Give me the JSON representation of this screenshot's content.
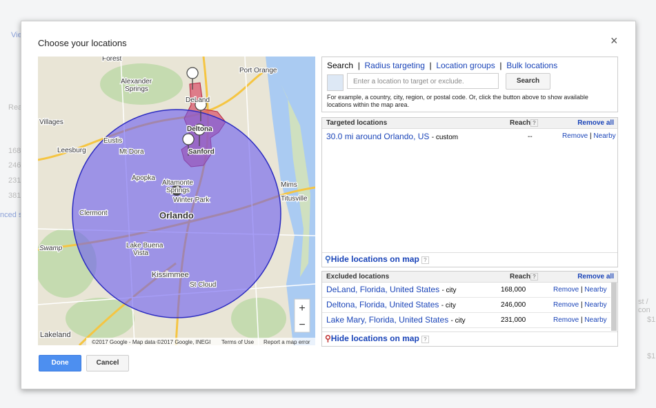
{
  "background": {
    "texts": [
      "Vie",
      "Rea",
      "168",
      "246",
      "231",
      "381",
      "nced s",
      "st / con",
      "$1",
      "$1"
    ]
  },
  "dialog": {
    "title": "Choose your locations",
    "close": "×",
    "tabs": [
      "Search",
      "Radius targeting",
      "Location groups",
      "Bulk locations"
    ],
    "search": {
      "placeholder": "Enter a location to target or exclude.",
      "button": "Search",
      "help": "For example, a country, city, region, or postal code. Or, click the button above to show available locations within the map area."
    },
    "targeted": {
      "header": "Targeted locations",
      "reach": "Reach",
      "help": "?",
      "remove_all": "Remove all",
      "rows": [
        {
          "name": "30.0 mi around Orlando, US",
          "type": "- custom",
          "reach": "--",
          "remove": "Remove",
          "nearby": "Nearby"
        }
      ],
      "hide": "Hide locations on map",
      "hide_help": "?"
    },
    "excluded": {
      "header": "Excluded locations",
      "reach": "Reach",
      "help": "?",
      "remove_all": "Remove all",
      "rows": [
        {
          "name": "DeLand, Florida, United States",
          "type": "- city",
          "reach": "168,000",
          "remove": "Remove",
          "nearby": "Nearby"
        },
        {
          "name": "Deltona, Florida, United States",
          "type": "- city",
          "reach": "246,000",
          "remove": "Remove",
          "nearby": "Nearby"
        },
        {
          "name": "Lake Mary, Florida, United States",
          "type": "- city",
          "reach": "231,000",
          "remove": "Remove",
          "nearby": "Nearby"
        }
      ],
      "hide": "Hide locations on map",
      "hide_help": "?"
    },
    "buttons": {
      "done": "Done",
      "cancel": "Cancel"
    }
  },
  "map": {
    "labels": [
      "Forest",
      "Port Orange",
      "Alexander",
      "Springs",
      "DeLand",
      "Deltona",
      "Villages",
      "Eustis",
      "Mt Dora",
      "Sanford",
      "Leesburg",
      "Apopka",
      "Altamonte",
      "Springs",
      "Winter Park",
      "Mims",
      "Titusville",
      "Clermont",
      "Orlando",
      "Lake Buena",
      "Vista",
      "Kissimmee",
      "St Cloud",
      "Swamp",
      "Lakeland"
    ],
    "zoom_in": "+",
    "zoom_out": "−",
    "copyright": "©2017 Google - Map data ©2017 Google, INEGI",
    "terms": "Terms of Use",
    "report": "Report a map error"
  }
}
